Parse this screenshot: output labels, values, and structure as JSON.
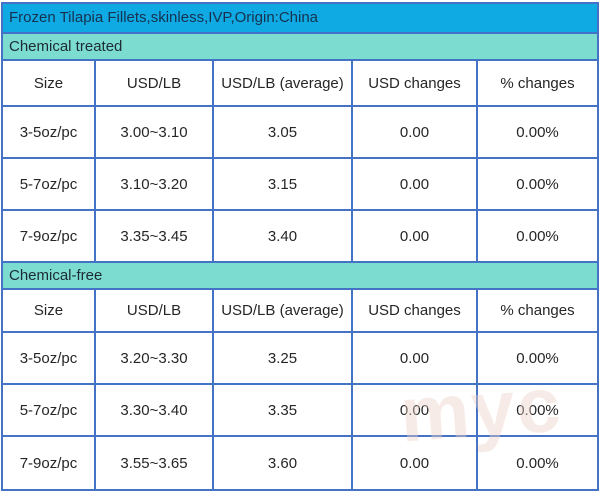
{
  "title": "Frozen Tilapia Fillets,skinless,IVP,Origin:China",
  "columns": [
    "Size",
    "USD/LB",
    "USD/LB (average)",
    "USD changes",
    "% changes"
  ],
  "sections": [
    {
      "label": "Chemical treated",
      "rows": [
        [
          "3-5oz/pc",
          "3.00~3.10",
          "3.05",
          "0.00",
          "0.00%"
        ],
        [
          "5-7oz/pc",
          "3.10~3.20",
          "3.15",
          "0.00",
          "0.00%"
        ],
        [
          "7-9oz/pc",
          "3.35~3.45",
          "3.40",
          "0.00",
          "0.00%"
        ]
      ]
    },
    {
      "label": "Chemical-free",
      "rows": [
        [
          "3-5oz/pc",
          "3.20~3.30",
          "3.25",
          "0.00",
          "0.00%"
        ],
        [
          "5-7oz/pc",
          "3.30~3.40",
          "3.35",
          "0.00",
          "0.00%"
        ],
        [
          "7-9oz/pc",
          "3.55~3.65",
          "3.60",
          "0.00",
          "0.00%"
        ]
      ]
    }
  ],
  "watermark": "myc",
  "colors": {
    "title_bg": "#0fa9e4",
    "section_bg": "#7ddcd0",
    "border": "#4472c4",
    "cell_bg": "#ffffff",
    "body_text": "#262626",
    "title_text": "#16324f"
  },
  "chart_data": {
    "type": "table",
    "title": "Frozen Tilapia Fillets,skinless,IVP,Origin:China",
    "columns": [
      "Size",
      "USD/LB",
      "USD/LB (average)",
      "USD changes",
      "% changes"
    ],
    "groups": [
      {
        "name": "Chemical treated",
        "rows": [
          {
            "size": "3-5oz/pc",
            "usd_lb": "3.00~3.10",
            "usd_lb_average": 3.05,
            "usd_changes": 0.0,
            "pct_changes": "0.00%"
          },
          {
            "size": "5-7oz/pc",
            "usd_lb": "3.10~3.20",
            "usd_lb_average": 3.15,
            "usd_changes": 0.0,
            "pct_changes": "0.00%"
          },
          {
            "size": "7-9oz/pc",
            "usd_lb": "3.35~3.45",
            "usd_lb_average": 3.4,
            "usd_changes": 0.0,
            "pct_changes": "0.00%"
          }
        ]
      },
      {
        "name": "Chemical-free",
        "rows": [
          {
            "size": "3-5oz/pc",
            "usd_lb": "3.20~3.30",
            "usd_lb_average": 3.25,
            "usd_changes": 0.0,
            "pct_changes": "0.00%"
          },
          {
            "size": "5-7oz/pc",
            "usd_lb": "3.30~3.40",
            "usd_lb_average": 3.35,
            "usd_changes": 0.0,
            "pct_changes": "0.00%"
          },
          {
            "size": "7-9oz/pc",
            "usd_lb": "3.55~3.65",
            "usd_lb_average": 3.6,
            "usd_changes": 0.0,
            "pct_changes": "0.00%"
          }
        ]
      }
    ]
  }
}
